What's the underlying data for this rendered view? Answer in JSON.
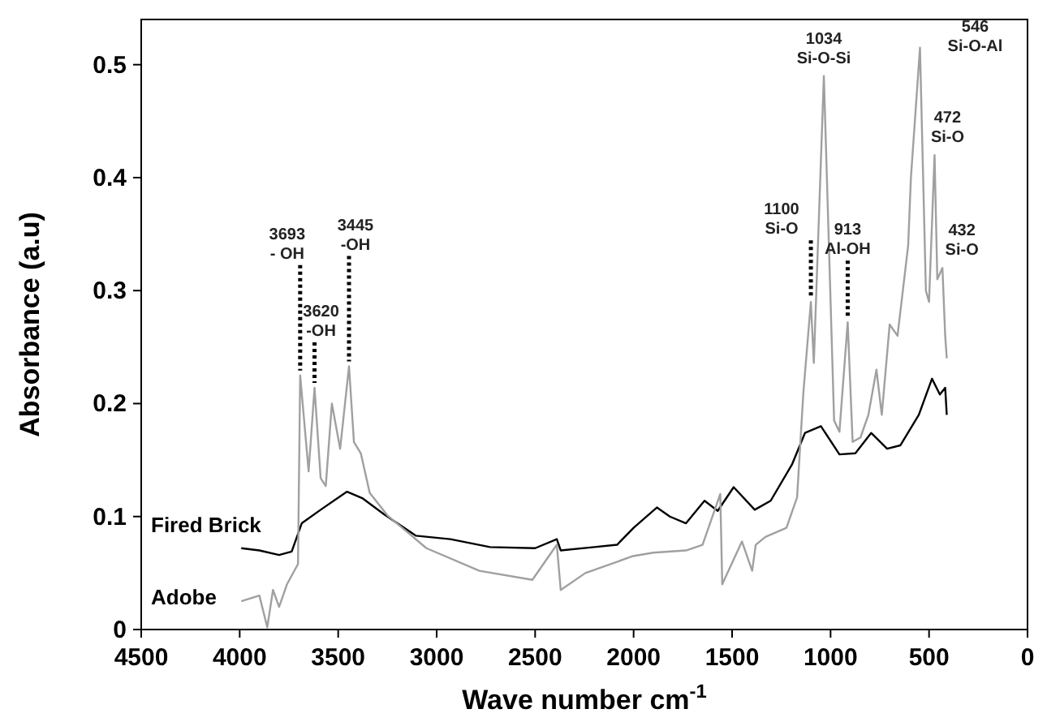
{
  "chart_data": {
    "type": "line",
    "xlabel": "Wave number cm$^{-1}$",
    "ylabel": "Absorbance (a.u)",
    "xlim": [
      4500,
      0
    ],
    "xticks": [
      4500,
      4000,
      3500,
      3000,
      2500,
      2000,
      1500,
      1000,
      500,
      0
    ],
    "ylim": [
      0,
      0.54
    ],
    "yticks": [
      0,
      0.1,
      0.2,
      0.3,
      0.4,
      0.5
    ],
    "grid": false,
    "series": [
      {
        "name": "Fired Brick",
        "color": "#000000",
        "x": [
          3992,
          3900,
          3800,
          3736,
          3685,
          3589,
          3455,
          3375,
          3267,
          3105,
          2930,
          2729,
          2500,
          2390,
          2370,
          2200,
          2084,
          2000,
          1882,
          1816,
          1734,
          1640,
          1573,
          1492,
          1385,
          1304,
          1196,
          1130,
          1049,
          955,
          874,
          794,
          713,
          646,
          552,
          485,
          445,
          418,
          410
        ],
        "values": [
          0.072,
          0.07,
          0.066,
          0.069,
          0.094,
          0.106,
          0.122,
          0.116,
          0.102,
          0.083,
          0.08,
          0.073,
          0.072,
          0.08,
          0.07,
          0.073,
          0.075,
          0.09,
          0.108,
          0.1,
          0.094,
          0.114,
          0.105,
          0.126,
          0.106,
          0.114,
          0.146,
          0.174,
          0.18,
          0.155,
          0.156,
          0.174,
          0.16,
          0.163,
          0.19,
          0.222,
          0.208,
          0.214,
          0.19
        ]
      },
      {
        "name": "Adobe",
        "color": "#a0a0a0",
        "x": [
          3992,
          3900,
          3860,
          3831,
          3800,
          3760,
          3704,
          3693,
          3650,
          3620,
          3589,
          3563,
          3532,
          3490,
          3445,
          3420,
          3385,
          3340,
          3250,
          3052,
          2783,
          2514,
          2390,
          2370,
          2245,
          2003,
          1900,
          1734,
          1650,
          1560,
          1550,
          1450,
          1398,
          1380,
          1331,
          1224,
          1170,
          1138,
          1100,
          1085,
          1034,
          982,
          955,
          913,
          888,
          848,
          808,
          767,
          740,
          700,
          660,
          606,
          592,
          546,
          516,
          500,
          472,
          458,
          432,
          418,
          410
        ],
        "values": [
          0.025,
          0.03,
          0.002,
          0.035,
          0.02,
          0.04,
          0.058,
          0.225,
          0.14,
          0.214,
          0.134,
          0.127,
          0.2,
          0.16,
          0.233,
          0.166,
          0.156,
          0.121,
          0.101,
          0.072,
          0.052,
          0.044,
          0.075,
          0.035,
          0.05,
          0.065,
          0.068,
          0.07,
          0.075,
          0.12,
          0.04,
          0.078,
          0.052,
          0.075,
          0.082,
          0.09,
          0.117,
          0.21,
          0.29,
          0.236,
          0.49,
          0.185,
          0.175,
          0.272,
          0.166,
          0.17,
          0.19,
          0.23,
          0.19,
          0.27,
          0.26,
          0.34,
          0.4,
          0.515,
          0.3,
          0.29,
          0.42,
          0.31,
          0.32,
          0.26,
          0.24
        ]
      }
    ],
    "annotations": [
      {
        "text": "3693\n- OH",
        "x": 3693,
        "y": 0.225
      },
      {
        "text": "3620\n-OH",
        "x": 3620,
        "y": 0.214
      },
      {
        "text": "3445\n-OH",
        "x": 3445,
        "y": 0.233
      },
      {
        "text": "1100\nSi-O",
        "x": 1100,
        "y": 0.29
      },
      {
        "text": "1034\nSi-O-Si",
        "x": 1034,
        "y": 0.49
      },
      {
        "text": "913\nAl-OH",
        "x": 913,
        "y": 0.272
      },
      {
        "text": "546\nSi-O-Al",
        "x": 546,
        "y": 0.515
      },
      {
        "text": "472\nSi-O",
        "x": 472,
        "y": 0.42
      },
      {
        "text": "432\nSi-O",
        "x": 432,
        "y": 0.32
      }
    ]
  }
}
